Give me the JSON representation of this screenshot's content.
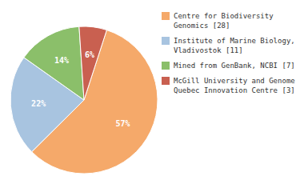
{
  "chart_data": {
    "type": "pie",
    "categories": [
      "Centre for Biodiversity\nGenomics [28]",
      "Institute of Marine Biology,\nVladivostok [11]",
      "Mined from GenBank, NCBI [7]",
      "McGill University and Genome\nQuebec Innovation Centre [3]"
    ],
    "values": [
      57,
      22,
      14,
      6
    ],
    "value_labels": [
      "57%",
      "22%",
      "14%",
      "6%"
    ],
    "colors": [
      "#F5A96A",
      "#A8C4E0",
      "#8BBF6A",
      "#C96050"
    ],
    "data_labels": true,
    "legend": "right"
  }
}
